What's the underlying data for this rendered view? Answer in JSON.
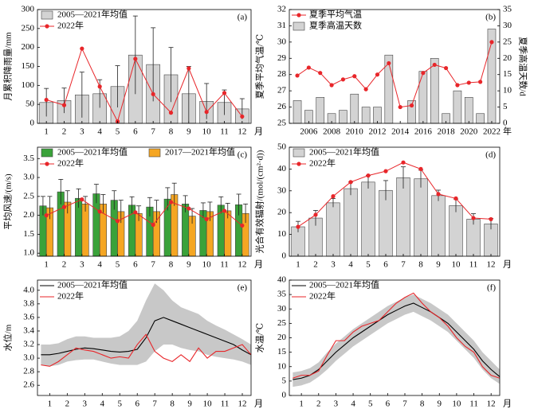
{
  "chart_data": [
    {
      "type": "bar",
      "panel_label": "(a)",
      "ylabel": "月累积降雨量/mm",
      "xlabel": "月",
      "categories": [
        "1",
        "2",
        "3",
        "4",
        "5",
        "6",
        "7",
        "8",
        "9",
        "10",
        "11",
        "12"
      ],
      "ylim": [
        0,
        300
      ],
      "yticks": [
        0,
        50,
        100,
        150,
        200,
        250,
        300
      ],
      "legend": "upper left",
      "series": [
        {
          "name": "2005—2021年均值",
          "mark": "bar",
          "color": "#d3d3d3",
          "values": [
            55,
            60,
            75,
            78,
            97,
            180,
            155,
            128,
            78,
            58,
            55,
            38
          ],
          "errors": [
            37,
            33,
            60,
            37,
            55,
            103,
            97,
            72,
            72,
            47,
            33,
            27
          ]
        },
        {
          "name": "2022年",
          "mark": "line",
          "markers": true,
          "color": "#e8262a",
          "values": [
            62,
            48,
            197,
            97,
            5,
            170,
            77,
            28,
            145,
            30,
            80,
            18
          ]
        }
      ]
    },
    {
      "type": "bar",
      "panel_label": "(b)",
      "ylabel": "夏季平均气温/℃",
      "y2label": "夏季高温天数/d",
      "xlabel": "年",
      "x": [
        2005,
        2006,
        2007,
        2008,
        2009,
        2010,
        2011,
        2012,
        2013,
        2014,
        2015,
        2016,
        2017,
        2018,
        2019,
        2020,
        2021,
        2022
      ],
      "xlim": [
        2004.3,
        2022.7
      ],
      "xticks": [
        2006,
        2008,
        2010,
        2012,
        2014,
        2016,
        2018,
        2020,
        2022
      ],
      "ylim": [
        25,
        32
      ],
      "yticks": [
        25,
        26,
        27,
        28,
        29,
        30,
        31,
        32
      ],
      "y2lim": [
        0,
        35
      ],
      "y2ticks": [
        0,
        5,
        10,
        15,
        20,
        25,
        30,
        35
      ],
      "legend": "upper left",
      "series": [
        {
          "name": "夏季平均气温",
          "mark": "line",
          "markers": true,
          "color": "#e8262a",
          "values": [
            27.94,
            28.43,
            28.1,
            27.35,
            27.7,
            27.9,
            27.1,
            28.0,
            28.7,
            26.0,
            26.1,
            28.1,
            28.6,
            28.4,
            27.35,
            27.5,
            27.55,
            30.0
          ]
        },
        {
          "name": "夏季高温天数",
          "mark": "bar",
          "axis": "y2",
          "color": "#d3d3d3",
          "values": [
            7,
            4,
            8,
            3,
            4,
            9,
            5,
            5,
            21,
            0,
            7,
            16,
            20,
            3,
            10,
            8,
            3,
            29
          ]
        }
      ]
    },
    {
      "type": "bar",
      "panel_label": "(c)",
      "ylabel": "平均风速/(m/s)",
      "xlabel": "月",
      "categories": [
        "1",
        "2",
        "3",
        "4",
        "5",
        "6",
        "7",
        "8",
        "9",
        "10",
        "11",
        "12"
      ],
      "ylim": [
        0.92,
        3.8
      ],
      "yticks": [
        {
          "value": 1,
          "label": "1.0"
        },
        1.5,
        {
          "value": 2,
          "label": "2.0"
        },
        2.5,
        {
          "value": 3,
          "label": "3.0"
        },
        3.5
      ],
      "legend": "upper left",
      "series": [
        {
          "name": "2005—2021年均值",
          "mark": "bar",
          "color": "#3aa23a",
          "values": [
            2.25,
            2.62,
            2.45,
            2.57,
            2.4,
            2.27,
            2.22,
            2.43,
            2.3,
            2.13,
            2.27,
            2.28
          ],
          "errors": [
            0.25,
            0.33,
            0.25,
            0.25,
            0.25,
            0.22,
            0.25,
            0.3,
            0.22,
            0.2,
            0.22,
            0.28
          ]
        },
        {
          "name": "2017—2021年均值",
          "mark": "bar",
          "color": "#f5a623",
          "values": [
            2.2,
            2.35,
            2.3,
            2.3,
            2.1,
            2.05,
            2.1,
            2.55,
            1.98,
            2.1,
            2.12,
            2.05
          ],
          "errors": [
            0.3,
            0.3,
            0.2,
            0.25,
            0.3,
            0.2,
            0.3,
            0.3,
            0.2,
            0.25,
            0.2,
            0.25
          ]
        },
        {
          "name": "2022年",
          "mark": "line",
          "markers": true,
          "color": "#e8262a",
          "values": [
            2.0,
            2.22,
            2.42,
            2.1,
            1.85,
            2.08,
            1.75,
            2.35,
            2.18,
            1.9,
            2.12,
            1.73
          ]
        }
      ]
    },
    {
      "type": "bar",
      "panel_label": "(d)",
      "ylabel": "光合有效辐射/(mol/(cm²·d))",
      "xlabel": "月",
      "categories": [
        "1",
        "2",
        "3",
        "4",
        "5",
        "6",
        "7",
        "8",
        "9",
        "10",
        "11",
        "12"
      ],
      "ylim": [
        0,
        50
      ],
      "yticks": [
        0,
        10,
        20,
        30,
        40,
        50
      ],
      "legend": "upper left",
      "series": [
        {
          "name": "2005—2021年均值",
          "mark": "bar",
          "color": "#d3d3d3",
          "values": [
            13.5,
            17.5,
            24.5,
            31,
            34,
            30.2,
            36,
            35.5,
            27.8,
            23.2,
            17,
            14.8
          ],
          "errors": [
            2.5,
            3.5,
            2,
            3,
            3,
            4.5,
            5,
            4,
            2.5,
            3,
            2.5,
            2.5
          ]
        },
        {
          "name": "2022年",
          "mark": "line",
          "markers": true,
          "color": "#e8262a",
          "values": [
            13.5,
            19,
            27.5,
            34,
            37,
            39,
            43,
            40,
            28.5,
            26.5,
            17.5,
            17
          ]
        }
      ]
    },
    {
      "type": "line",
      "panel_label": "(e)",
      "ylabel": "水位/m",
      "xlabel": "月",
      "x": [
        0.5,
        1,
        1.5,
        2,
        2.5,
        3,
        3.5,
        4,
        4.5,
        5,
        5.5,
        6,
        6.5,
        7,
        7.5,
        8,
        8.5,
        9,
        9.5,
        10,
        10.5,
        11,
        11.5,
        12,
        12.5
      ],
      "xlim": [
        0.3,
        12.5
      ],
      "xticks": [
        1,
        2,
        3,
        4,
        5,
        6,
        7,
        8,
        9,
        10,
        11,
        12
      ],
      "ylim": [
        2.45,
        4.15
      ],
      "yticks": [
        2.6,
        2.8,
        {
          "value": 3,
          "label": "3.0"
        },
        3.2,
        3.4,
        3.6,
        3.8,
        {
          "value": 4,
          "label": "4.0"
        }
      ],
      "legend": "upper left",
      "band_color": "#c8c8c8",
      "band_upper": [
        3.2,
        3.2,
        3.22,
        3.28,
        3.32,
        3.32,
        3.3,
        3.3,
        3.3,
        3.32,
        3.4,
        3.55,
        3.85,
        4.1,
        4.0,
        3.85,
        3.75,
        3.7,
        3.65,
        3.55,
        3.48,
        3.42,
        3.35,
        3.28,
        3.2
      ],
      "band_lower": [
        2.9,
        2.88,
        2.9,
        2.95,
        2.97,
        2.98,
        2.98,
        2.95,
        2.92,
        2.9,
        2.9,
        2.9,
        2.95,
        3.1,
        3.2,
        3.2,
        3.15,
        3.12,
        3.1,
        3.05,
        3.02,
        3.0,
        2.98,
        2.95,
        2.9
      ],
      "series": [
        {
          "name": "2005—2021年均值",
          "mark": "line",
          "color": "#000000",
          "values": [
            3.05,
            3.05,
            3.07,
            3.1,
            3.13,
            3.15,
            3.14,
            3.12,
            3.1,
            3.09,
            3.1,
            3.13,
            3.3,
            3.55,
            3.6,
            3.55,
            3.5,
            3.45,
            3.4,
            3.35,
            3.3,
            3.25,
            3.2,
            3.12,
            3.05
          ]
        },
        {
          "name": "2022年",
          "mark": "line",
          "color": "#e8262a",
          "values": [
            2.9,
            2.88,
            2.95,
            3.05,
            3.15,
            3.12,
            3.1,
            3.05,
            3.0,
            3.02,
            3.0,
            3.2,
            3.35,
            3.1,
            3.0,
            2.95,
            3.05,
            2.95,
            3.15,
            3.0,
            3.1,
            3.1,
            3.15,
            3.2,
            3.05
          ]
        }
      ]
    },
    {
      "type": "line",
      "panel_label": "(f)",
      "ylabel": "水温/℃",
      "xlabel": "月",
      "x": [
        0.5,
        1,
        1.5,
        2,
        2.5,
        3,
        3.5,
        4,
        4.5,
        5,
        5.5,
        6,
        6.5,
        7,
        7.5,
        8,
        8.5,
        9,
        9.5,
        10,
        10.5,
        11,
        11.5,
        12,
        12.5
      ],
      "xlim": [
        0.3,
        12.5
      ],
      "xticks": [
        1,
        2,
        3,
        4,
        5,
        6,
        7,
        8,
        9,
        10,
        11,
        12
      ],
      "ylim": [
        0,
        40
      ],
      "yticks": [
        0,
        5,
        10,
        15,
        20,
        25,
        30,
        35,
        40
      ],
      "legend": "upper left",
      "band_color": "#c8c8c8",
      "band_upper": [
        8,
        8.5,
        9.5,
        11.5,
        15,
        18,
        20.5,
        23,
        25,
        27,
        29,
        31,
        32.5,
        34,
        35,
        33.5,
        32,
        30,
        28,
        25,
        22,
        19,
        15,
        12,
        9
      ],
      "band_lower": [
        3,
        3.5,
        4.5,
        6.5,
        9,
        12,
        14.5,
        17,
        19,
        21,
        23,
        25,
        26.5,
        28,
        29,
        27.5,
        26,
        24,
        22,
        19,
        16,
        13,
        9,
        6,
        4
      ],
      "series": [
        {
          "name": "2005—2021年均值",
          "mark": "line",
          "color": "#000000",
          "values": [
            5.5,
            6,
            7,
            9,
            12,
            15,
            17.5,
            20,
            22,
            24,
            26,
            28,
            29.5,
            31,
            32,
            30.5,
            29,
            27,
            25,
            22,
            19,
            16,
            12,
            9,
            6.5
          ]
        },
        {
          "name": "2022年",
          "mark": "line",
          "color": "#e8262a",
          "values": [
            6,
            7,
            7,
            8.5,
            14,
            19,
            19,
            22,
            24,
            25,
            26,
            29,
            32,
            34,
            35.5,
            32,
            29,
            27,
            24,
            20,
            17,
            15,
            10,
            7,
            6
          ]
        }
      ]
    }
  ]
}
